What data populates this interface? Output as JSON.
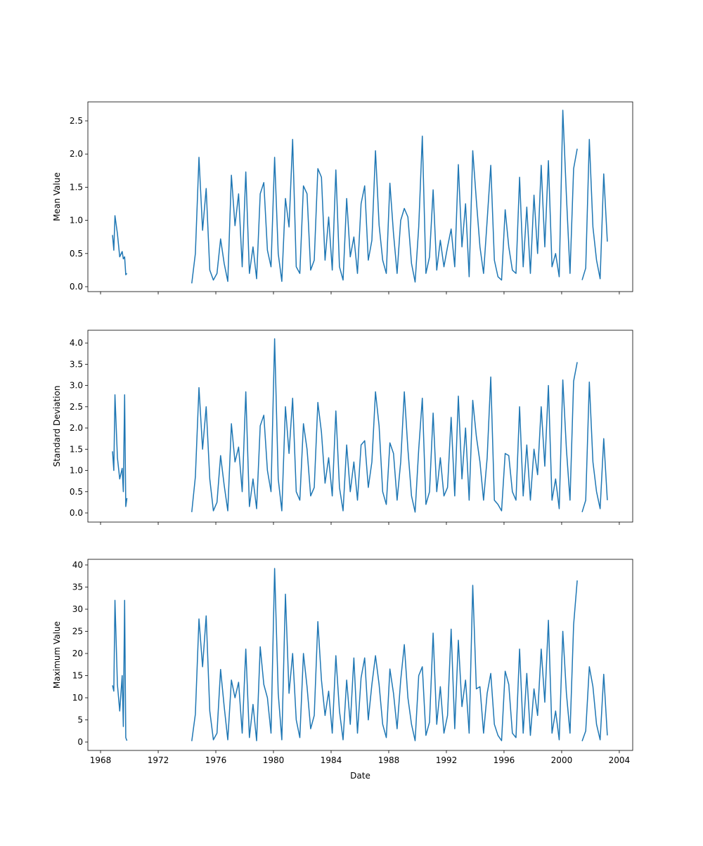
{
  "chart_data": {
    "type": "line",
    "color": "#1f77b4",
    "xlabel": "Date",
    "xlim": [
      1967.12,
      2004.93
    ],
    "xticks": [
      1968,
      1972,
      1976,
      1980,
      1984,
      1988,
      1992,
      1996,
      2000,
      2004
    ],
    "x": [
      1968.83,
      1968.92,
      1969.0,
      1969.17,
      1969.33,
      1969.5,
      1969.58,
      1969.67,
      1969.75,
      1969.83,
      1972.0,
      1974.33,
      1974.58,
      1974.83,
      1975.08,
      1975.33,
      1975.58,
      1975.83,
      1976.08,
      1976.33,
      1976.58,
      1976.83,
      1977.08,
      1977.33,
      1977.58,
      1977.83,
      1978.08,
      1978.33,
      1978.58,
      1978.83,
      1979.08,
      1979.33,
      1979.58,
      1979.83,
      1980.08,
      1980.33,
      1980.58,
      1980.83,
      1981.08,
      1981.33,
      1981.58,
      1981.83,
      1982.08,
      1982.33,
      1982.58,
      1982.83,
      1983.08,
      1983.33,
      1983.58,
      1983.83,
      1984.08,
      1984.33,
      1984.58,
      1984.83,
      1985.08,
      1985.33,
      1985.58,
      1985.83,
      1986.08,
      1986.33,
      1986.58,
      1986.83,
      1987.08,
      1987.33,
      1987.58,
      1987.83,
      1988.08,
      1988.33,
      1988.58,
      1988.83,
      1989.08,
      1989.33,
      1989.58,
      1989.83,
      1990.08,
      1990.33,
      1990.58,
      1990.83,
      1991.08,
      1991.33,
      1991.58,
      1991.83,
      1992.08,
      1992.33,
      1992.58,
      1992.83,
      1993.08,
      1993.33,
      1993.58,
      1993.83,
      1994.08,
      1994.33,
      1994.58,
      1994.83,
      1995.08,
      1995.33,
      1995.58,
      1995.83,
      1996.08,
      1996.33,
      1996.58,
      1996.83,
      1997.08,
      1997.33,
      1997.58,
      1997.83,
      1998.08,
      1998.33,
      1998.58,
      1998.83,
      1999.08,
      1999.33,
      1999.58,
      1999.83,
      2000.08,
      2000.33,
      2000.58,
      2000.83,
      2001.08,
      2001.25,
      2001.42,
      2001.67,
      2001.92,
      2002.17,
      2002.42,
      2002.67,
      2002.92,
      2003.17
    ],
    "panels": [
      {
        "ylabel": "Mean Value",
        "ylim": [
          -0.074,
          2.786
        ],
        "yticks": [
          {
            "value": 0,
            "label": "0.0"
          },
          0.5,
          {
            "value": 1,
            "label": "1.0"
          },
          1.5,
          {
            "value": 2,
            "label": "2.0"
          },
          2.5
        ],
        "values": [
          0.78,
          0.55,
          1.07,
          0.8,
          0.45,
          0.53,
          0.42,
          0.45,
          0.18,
          0.2,
          null,
          0.05,
          0.5,
          1.95,
          0.85,
          1.48,
          0.25,
          0.1,
          0.2,
          0.72,
          0.35,
          0.08,
          1.68,
          0.92,
          1.4,
          0.3,
          1.73,
          0.2,
          0.6,
          0.12,
          1.4,
          1.57,
          0.55,
          0.3,
          1.95,
          0.5,
          0.08,
          1.33,
          0.9,
          2.22,
          0.3,
          0.2,
          1.52,
          1.4,
          0.25,
          0.4,
          1.78,
          1.65,
          0.4,
          1.05,
          0.25,
          1.76,
          0.3,
          0.1,
          1.33,
          0.45,
          0.75,
          0.2,
          1.25,
          1.52,
          0.4,
          0.7,
          2.05,
          0.93,
          0.4,
          0.2,
          1.56,
          0.8,
          0.2,
          1.0,
          1.18,
          1.05,
          0.35,
          0.07,
          0.9,
          2.27,
          0.2,
          0.45,
          1.46,
          0.25,
          0.7,
          0.3,
          0.6,
          0.87,
          0.3,
          1.84,
          0.6,
          1.25,
          0.15,
          2.05,
          1.3,
          0.6,
          0.2,
          1.0,
          1.83,
          0.4,
          0.15,
          0.1,
          1.16,
          0.6,
          0.25,
          0.2,
          1.65,
          0.3,
          1.2,
          0.2,
          1.38,
          0.5,
          1.83,
          0.6,
          1.9,
          0.3,
          0.5,
          0.15,
          2.66,
          1.37,
          0.2,
          1.78,
          2.08,
          null,
          0.1,
          0.28,
          2.22,
          0.9,
          0.4,
          0.12,
          1.7,
          0.68
        ]
      },
      {
        "ylabel": "Standard Deviation",
        "ylim": [
          -0.215,
          4.3
        ],
        "yticks": [
          {
            "value": 0,
            "label": "0.0"
          },
          0.5,
          {
            "value": 1,
            "label": "1.0"
          },
          1.5,
          {
            "value": 2,
            "label": "2.0"
          },
          2.5,
          {
            "value": 3,
            "label": "3.0"
          },
          3.5,
          {
            "value": 4,
            "label": "4.0"
          }
        ],
        "values": [
          1.45,
          1.0,
          2.78,
          1.3,
          0.8,
          1.05,
          0.5,
          2.78,
          0.15,
          0.35,
          null,
          0.02,
          0.85,
          2.95,
          1.5,
          2.5,
          0.8,
          0.05,
          0.25,
          1.35,
          0.65,
          0.05,
          2.1,
          1.2,
          1.55,
          0.5,
          2.85,
          0.15,
          0.8,
          0.1,
          2.05,
          2.3,
          1.0,
          0.5,
          4.1,
          0.8,
          0.05,
          2.5,
          1.4,
          2.7,
          0.5,
          0.3,
          2.1,
          1.5,
          0.4,
          0.6,
          2.6,
          1.9,
          0.7,
          1.3,
          0.4,
          2.4,
          0.6,
          0.05,
          1.6,
          0.5,
          1.2,
          0.3,
          1.6,
          1.7,
          0.6,
          1.2,
          2.85,
          2.05,
          0.5,
          0.2,
          1.65,
          1.4,
          0.3,
          1.2,
          2.85,
          1.5,
          0.4,
          0.02,
          1.5,
          2.7,
          0.2,
          0.5,
          2.35,
          0.5,
          1.3,
          0.4,
          0.6,
          2.25,
          0.4,
          2.75,
          0.8,
          2.0,
          0.3,
          2.65,
          1.8,
          1.2,
          0.3,
          1.3,
          3.2,
          0.3,
          0.2,
          0.05,
          1.4,
          1.35,
          0.5,
          0.3,
          2.5,
          0.4,
          1.6,
          0.3,
          1.5,
          0.9,
          2.5,
          1.1,
          3.0,
          0.3,
          0.8,
          0.1,
          3.13,
          1.5,
          0.3,
          3.1,
          3.55,
          null,
          0.02,
          0.3,
          3.08,
          1.2,
          0.5,
          0.1,
          1.75,
          0.3
        ]
      },
      {
        "ylabel": "Maximum Value",
        "ylim": [
          -1.9,
          41.27
        ],
        "yticks": [
          0,
          5,
          10,
          15,
          20,
          25,
          30,
          35,
          40
        ],
        "values": [
          12.8,
          11.5,
          32,
          13,
          7,
          15,
          3.5,
          32,
          1,
          0.3,
          null,
          0.2,
          6.3,
          27.8,
          17,
          28.5,
          7,
          0.5,
          2,
          16.4,
          8,
          0.5,
          14,
          10,
          13.5,
          2,
          21,
          1,
          8.5,
          0.3,
          21.5,
          13,
          10,
          2,
          39.2,
          11,
          0.5,
          33.4,
          11,
          20,
          5,
          1,
          20,
          12.5,
          3,
          6,
          27.2,
          14,
          6,
          11.5,
          2,
          19.5,
          7,
          0.5,
          14,
          4,
          19,
          2,
          14.5,
          19,
          5,
          13,
          19.5,
          13,
          4,
          1,
          16.5,
          11,
          3,
          14,
          22,
          10,
          4,
          0.3,
          15,
          17,
          1.5,
          4.5,
          24.6,
          4,
          12.5,
          2,
          6,
          25.5,
          3,
          23,
          8,
          14,
          2,
          35.4,
          12,
          12.5,
          2,
          11,
          15.5,
          4,
          1.5,
          0.3,
          16,
          13,
          2,
          1,
          21,
          2,
          15.5,
          1.5,
          12,
          6,
          21,
          9,
          27.5,
          2,
          7,
          0.5,
          25,
          11,
          2,
          26.5,
          36.5,
          null,
          0.2,
          2.5,
          17,
          12.5,
          4,
          0.5,
          15.3,
          1.5
        ]
      }
    ]
  }
}
